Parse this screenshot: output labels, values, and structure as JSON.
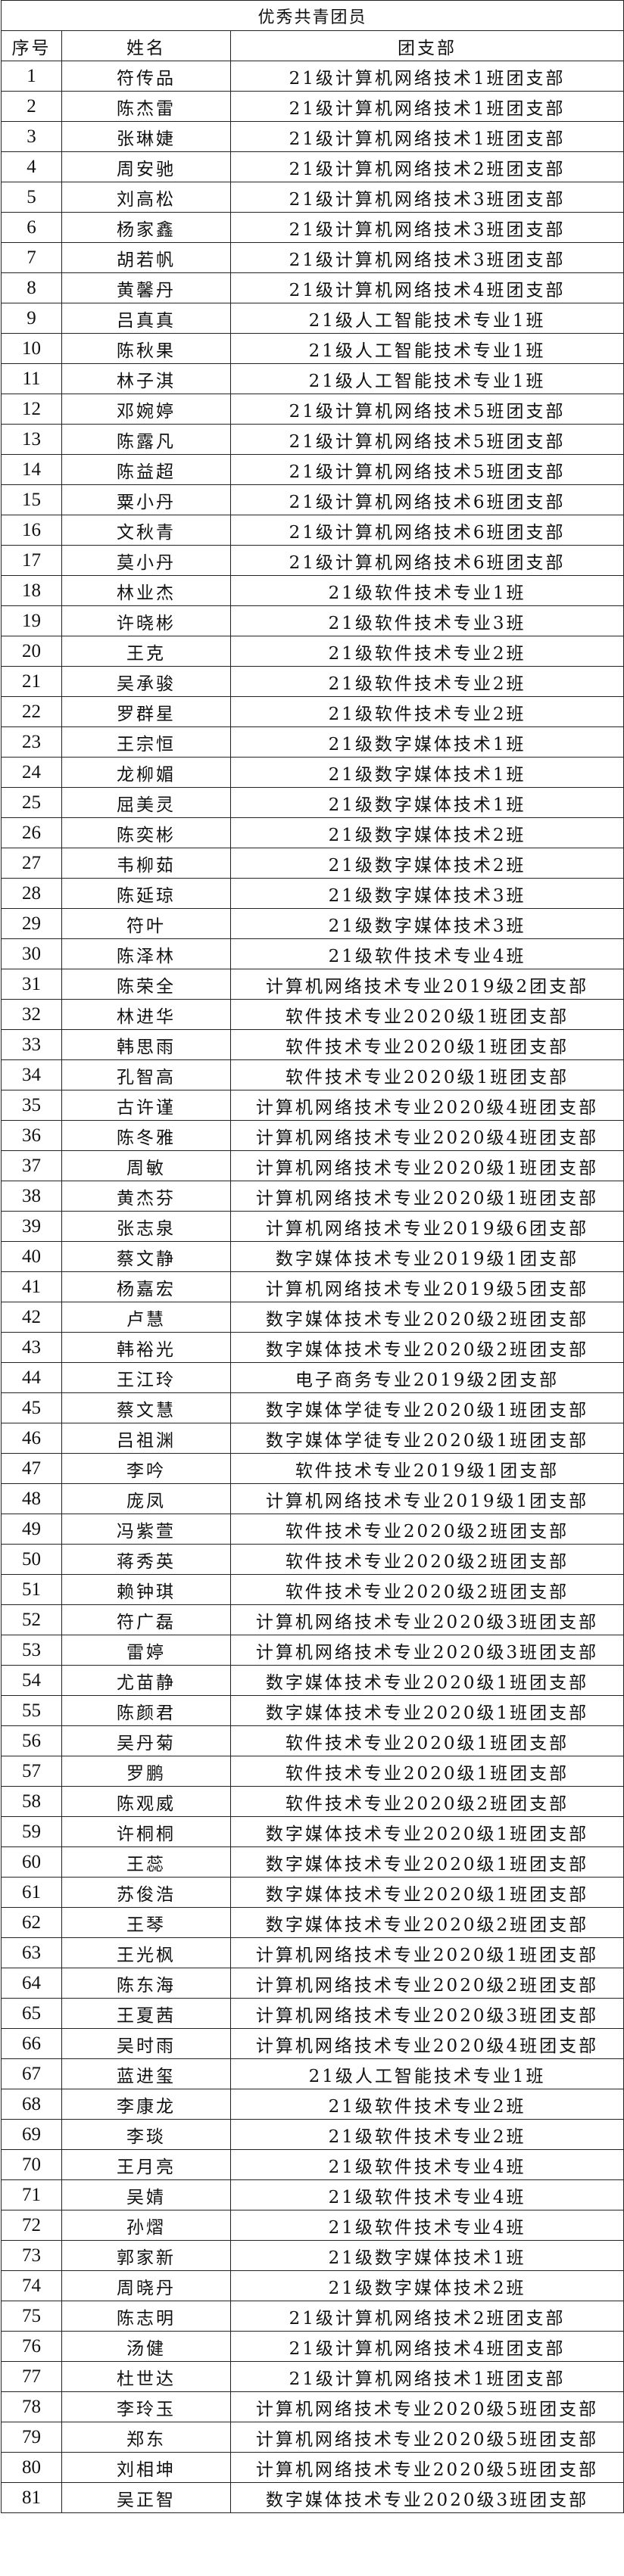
{
  "title": "优秀共青团员",
  "headers": [
    "序号",
    "姓名",
    "团支部"
  ],
  "rows": [
    [
      "1",
      "符传品",
      "21级计算机网络技术1班团支部"
    ],
    [
      "2",
      "陈杰雷",
      "21级计算机网络技术1班团支部"
    ],
    [
      "3",
      "张琳婕",
      "21级计算机网络技术1班团支部"
    ],
    [
      "4",
      "周安驰",
      "21级计算机网络技术2班团支部"
    ],
    [
      "5",
      "刘高松",
      "21级计算机网络技术3班团支部"
    ],
    [
      "6",
      "杨家鑫",
      "21级计算机网络技术3班团支部"
    ],
    [
      "7",
      "胡若帆",
      "21级计算机网络技术3班团支部"
    ],
    [
      "8",
      "黄馨丹",
      "21级计算机网络技术4班团支部"
    ],
    [
      "9",
      "吕真真",
      "21级人工智能技术专业1班"
    ],
    [
      "10",
      "陈秋果",
      "21级人工智能技术专业1班"
    ],
    [
      "11",
      "林子淇",
      "21级人工智能技术专业1班"
    ],
    [
      "12",
      "邓婉婷",
      "21级计算机网络技术5班团支部"
    ],
    [
      "13",
      "陈露凡",
      "21级计算机网络技术5班团支部"
    ],
    [
      "14",
      "陈益超",
      "21级计算机网络技术5班团支部"
    ],
    [
      "15",
      "粟小丹",
      "21级计算机网络技术6班团支部"
    ],
    [
      "16",
      "文秋青",
      "21级计算机网络技术6班团支部"
    ],
    [
      "17",
      "莫小丹",
      "21级计算机网络技术6班团支部"
    ],
    [
      "18",
      "林业杰",
      "21级软件技术专业1班"
    ],
    [
      "19",
      "许晓彬",
      "21级软件技术专业3班"
    ],
    [
      "20",
      "王克",
      "21级软件技术专业2班"
    ],
    [
      "21",
      "吴承骏",
      "21级软件技术专业2班"
    ],
    [
      "22",
      "罗群星",
      "21级软件技术专业2班"
    ],
    [
      "23",
      "王宗恒",
      "21级数字媒体技术1班"
    ],
    [
      "24",
      "龙柳媚",
      "21级数字媒体技术1班"
    ],
    [
      "25",
      "屈美灵",
      "21级数字媒体技术1班"
    ],
    [
      "26",
      "陈奕彬",
      "21级数字媒体技术2班"
    ],
    [
      "27",
      "韦柳茹",
      "21级数字媒体技术2班"
    ],
    [
      "28",
      "陈延琼",
      "21级数字媒体技术3班"
    ],
    [
      "29",
      "符叶",
      "21级数字媒体技术3班"
    ],
    [
      "30",
      "陈泽林",
      "21级软件技术专业4班"
    ],
    [
      "31",
      "陈荣全",
      "计算机网络技术专业2019级2团支部"
    ],
    [
      "32",
      "林进华",
      "软件技术专业2020级1班团支部"
    ],
    [
      "33",
      "韩思雨",
      "软件技术专业2020级1班团支部"
    ],
    [
      "34",
      "孔智高",
      "软件技术专业2020级1班团支部"
    ],
    [
      "35",
      "古许谨",
      "计算机网络技术专业2020级4班团支部"
    ],
    [
      "36",
      "陈冬雅",
      "计算机网络技术专业2020级4班团支部"
    ],
    [
      "37",
      "周敏",
      "计算机网络技术专业2020级1班团支部"
    ],
    [
      "38",
      "黄杰芬",
      "计算机网络技术专业2020级1班团支部"
    ],
    [
      "39",
      "张志泉",
      "计算机网络技术专业2019级6团支部"
    ],
    [
      "40",
      "蔡文静",
      "数字媒体技术专业2019级1团支部"
    ],
    [
      "41",
      "杨嘉宏",
      "计算机网络技术专业2019级5团支部"
    ],
    [
      "42",
      "卢慧",
      "数字媒体技术专业2020级2班团支部"
    ],
    [
      "43",
      "韩裕光",
      "数字媒体技术专业2020级2班团支部"
    ],
    [
      "44",
      "王江玲",
      "电子商务专业2019级2团支部"
    ],
    [
      "45",
      "蔡文慧",
      "数字媒体学徒专业2020级1班团支部"
    ],
    [
      "46",
      "吕祖渊",
      "数字媒体学徒专业2020级1班团支部"
    ],
    [
      "47",
      "李吟",
      "软件技术专业2019级1团支部"
    ],
    [
      "48",
      "庞凤",
      "计算机网络技术专业2019级1团支部"
    ],
    [
      "49",
      "冯紫萱",
      "软件技术专业2020级2班团支部"
    ],
    [
      "50",
      "蒋秀英",
      "软件技术专业2020级2班团支部"
    ],
    [
      "51",
      "赖钟琪",
      "软件技术专业2020级2班团支部"
    ],
    [
      "52",
      "符广磊",
      "计算机网络技术专业2020级3班团支部"
    ],
    [
      "53",
      "雷婷",
      "计算机网络技术专业2020级3班团支部"
    ],
    [
      "54",
      "尤苗静",
      "数字媒体技术专业2020级1班团支部"
    ],
    [
      "55",
      "陈颜君",
      "数字媒体技术专业2020级1班团支部"
    ],
    [
      "56",
      "吴丹菊",
      "软件技术专业2020级1班团支部"
    ],
    [
      "57",
      "罗鹏",
      "软件技术专业2020级1班团支部"
    ],
    [
      "58",
      "陈观威",
      "软件技术专业2020级2班团支部"
    ],
    [
      "59",
      "许桐桐",
      "数字媒体技术专业2020级1班团支部"
    ],
    [
      "60",
      "王蕊",
      "数字媒体技术专业2020级1班团支部"
    ],
    [
      "61",
      "苏俊浩",
      "数字媒体技术专业2020级1班团支部"
    ],
    [
      "62",
      "王琴",
      "数字媒体技术专业2020级2班团支部"
    ],
    [
      "63",
      "王光枫",
      "计算机网络技术专业2020级1班团支部"
    ],
    [
      "64",
      "陈东海",
      "计算机网络技术专业2020级2班团支部"
    ],
    [
      "65",
      "王夏茜",
      "计算机网络技术专业2020级3班团支部"
    ],
    [
      "66",
      "吴时雨",
      "计算机网络技术专业2020级4班团支部"
    ],
    [
      "67",
      "蓝进玺",
      "21级人工智能技术专业1班"
    ],
    [
      "68",
      "李康龙",
      "21级软件技术专业2班"
    ],
    [
      "69",
      "李琰",
      "21级软件技术专业2班"
    ],
    [
      "70",
      "王月亮",
      "21级软件技术专业4班"
    ],
    [
      "71",
      "吴婧",
      "21级软件技术专业4班"
    ],
    [
      "72",
      "孙熠",
      "21级软件技术专业4班"
    ],
    [
      "73",
      "郭家新",
      "21级数字媒体技术1班"
    ],
    [
      "74",
      "周晓丹",
      "21级数字媒体技术2班"
    ],
    [
      "75",
      "陈志明",
      "21级计算机网络技术2班团支部"
    ],
    [
      "76",
      "汤健",
      "21级计算机网络技术4班团支部"
    ],
    [
      "77",
      "杜世达",
      "21级计算机网络技术1班团支部"
    ],
    [
      "78",
      "李玲玉",
      "计算机网络技术专业2020级5班团支部"
    ],
    [
      "79",
      "郑东",
      "计算机网络技术专业2020级5班团支部"
    ],
    [
      "80",
      "刘相坤",
      "计算机网络技术专业2020级5班团支部"
    ],
    [
      "81",
      "吴正智",
      "数字媒体技术专业2020级3班团支部"
    ]
  ]
}
